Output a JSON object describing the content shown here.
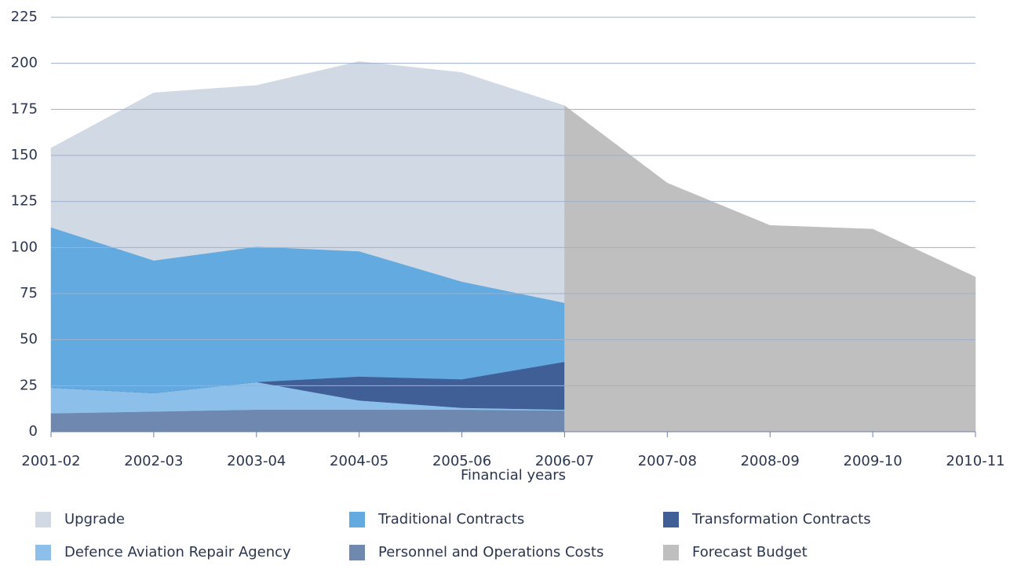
{
  "chart_data": {
    "type": "area",
    "categories": [
      "2001-02",
      "2002-03",
      "2003-04",
      "2004-05",
      "2005-06",
      "2006-07",
      "2007-08",
      "2008-09",
      "2009-10",
      "2010-11"
    ],
    "xlabel": "Financial years",
    "series": [
      {
        "name": "Personnel and Operations Costs",
        "color": "#6f88b0",
        "values": [
          10,
          11,
          12,
          12,
          12,
          11.5,
          null,
          null,
          null,
          null
        ]
      },
      {
        "name": "Defence Aviation Repair Agency",
        "color": "#8cc0ea",
        "values": [
          14,
          10,
          15,
          5,
          1,
          0.5,
          null,
          null,
          null,
          null
        ]
      },
      {
        "name": "Transformation Contracts",
        "color": "#3f5f96",
        "values": [
          0,
          0,
          0,
          13,
          15.5,
          26,
          null,
          null,
          null,
          null
        ]
      },
      {
        "name": "Traditional Contracts",
        "color": "#62aae0",
        "values": [
          87,
          72,
          73.5,
          68,
          53,
          32,
          null,
          null,
          null,
          null
        ]
      },
      {
        "name": "Upgrade",
        "color": "#d0d9e4",
        "values": [
          43,
          91,
          87.5,
          103,
          113.5,
          107,
          null,
          null,
          null,
          null
        ]
      },
      {
        "name": "Forecast Budget",
        "color": "#bfbfbf",
        "stack": false,
        "values": [
          null,
          null,
          null,
          null,
          null,
          177,
          135,
          112,
          110,
          84
        ]
      }
    ],
    "legend_order": [
      4,
      3,
      2,
      1,
      0,
      5
    ],
    "ylim": [
      0,
      225
    ],
    "yticks": [
      0,
      25,
      50,
      75,
      100,
      125,
      150,
      175,
      200,
      225
    ],
    "grid": true
  }
}
